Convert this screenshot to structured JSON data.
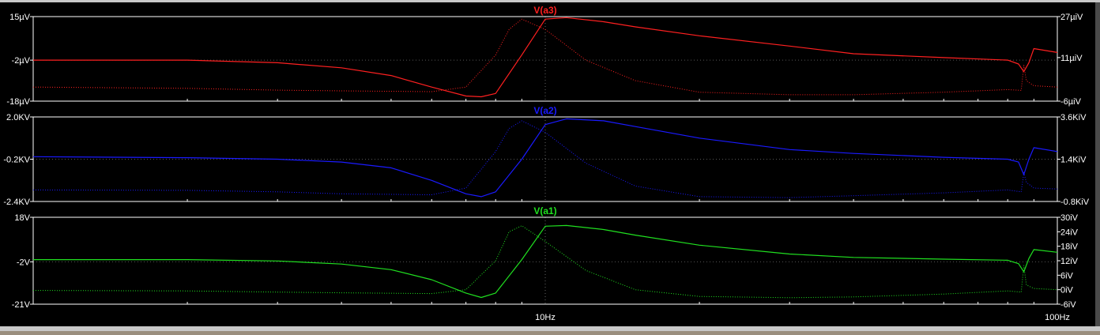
{
  "window": {
    "colors": {
      "background": "#000000",
      "frame": "#ffffff",
      "chrome": "#c8c8c8",
      "bottom_strip": "#9a8e7e"
    }
  },
  "x_axis": {
    "scale": "log",
    "range": [
      1,
      100
    ],
    "tick_labels": [
      {
        "value": 10,
        "label": "10Hz"
      },
      {
        "value": 100,
        "label": "100Hz"
      }
    ],
    "grid": true
  },
  "panes": [
    {
      "title": "V(a3)",
      "color": "#ff2020",
      "left_axis": {
        "range": [
          -18,
          15
        ],
        "ticks": [
          {
            "value": 15,
            "label": "15µV"
          },
          {
            "value": -2,
            "label": "-2µV"
          },
          {
            "value": -18,
            "label": "-18µV"
          }
        ]
      },
      "right_axis": {
        "range": [
          -6,
          27
        ],
        "ticks": [
          {
            "value": 27,
            "label": "27µiV"
          },
          {
            "value": 11,
            "label": "11µiV"
          },
          {
            "value": -6,
            "label": "-6µiV"
          }
        ]
      }
    },
    {
      "title": "V(a2)",
      "color": "#1a1aff",
      "left_axis": {
        "range": [
          -2.4,
          2.0
        ],
        "ticks": [
          {
            "value": 2.0,
            "label": "2.0KV"
          },
          {
            "value": -0.2,
            "label": "-0.2KV"
          },
          {
            "value": -2.4,
            "label": "-2.4KV"
          }
        ]
      },
      "right_axis": {
        "range": [
          -0.8,
          3.6
        ],
        "ticks": [
          {
            "value": 3.6,
            "label": "3.6KiV"
          },
          {
            "value": 1.4,
            "label": "1.4KiV"
          },
          {
            "value": -0.8,
            "label": "-0.8KiV"
          }
        ]
      }
    },
    {
      "title": "V(a1)",
      "color": "#20e020",
      "left_axis": {
        "range": [
          -21,
          18
        ],
        "ticks": [
          {
            "value": 18,
            "label": "18V"
          },
          {
            "value": -2,
            "label": "-2V"
          },
          {
            "value": -21,
            "label": "-21V"
          }
        ]
      },
      "right_axis": {
        "range": [
          -6,
          30
        ],
        "ticks": [
          {
            "value": 30,
            "label": "30iV"
          },
          {
            "value": 24,
            "label": "24iV"
          },
          {
            "value": 18,
            "label": "18iV"
          },
          {
            "value": 12,
            "label": "12iV"
          },
          {
            "value": 6,
            "label": "6iV"
          },
          {
            "value": 0,
            "label": "0iV"
          },
          {
            "value": -6,
            "label": "-6iV"
          }
        ]
      }
    }
  ],
  "chart_data": {
    "type": "line",
    "x_scale": "log",
    "xlim": [
      1,
      100
    ],
    "x_ticks": [
      "10Hz",
      "100Hz"
    ],
    "grid": true,
    "panes": [
      {
        "title": "V(a3)",
        "magnitude": {
          "axis": "left",
          "unit": "µV",
          "ylim": [
            -18,
            15
          ],
          "points": [
            [
              1,
              -2.0
            ],
            [
              2,
              -2.0
            ],
            [
              3,
              -3
            ],
            [
              4,
              -5
            ],
            [
              5,
              -8
            ],
            [
              6,
              -12.5
            ],
            [
              7,
              -16.0
            ],
            [
              7.5,
              -16.3
            ],
            [
              8,
              -15
            ],
            [
              9,
              0
            ],
            [
              10,
              14.0
            ],
            [
              11,
              14.6
            ],
            [
              13,
              13
            ],
            [
              15,
              11
            ],
            [
              20,
              7.5
            ],
            [
              30,
              3.5
            ],
            [
              40,
              0.5
            ],
            [
              60,
              -1.0
            ],
            [
              80,
              -2.0
            ],
            [
              84,
              -3.5
            ],
            [
              86,
              -6.5
            ],
            [
              88,
              -3.0
            ],
            [
              90,
              2.5
            ],
            [
              100,
              1.0
            ]
          ]
        },
        "phase": {
          "axis": "right",
          "unit": "µiV",
          "ylim": [
            -6,
            27
          ],
          "points": [
            [
              1,
              -0.5
            ],
            [
              2,
              -1.0
            ],
            [
              3,
              -1.7
            ],
            [
              4,
              -2.0
            ],
            [
              6,
              -2.3
            ],
            [
              7,
              -0.5
            ],
            [
              8,
              12
            ],
            [
              8.5,
              22
            ],
            [
              9,
              26
            ],
            [
              10,
              22
            ],
            [
              12,
              10
            ],
            [
              15,
              2
            ],
            [
              20,
              -2.5
            ],
            [
              30,
              -3.5
            ],
            [
              40,
              -3.5
            ],
            [
              60,
              -2.5
            ],
            [
              80,
              -1.5
            ],
            [
              85,
              -1.8
            ],
            [
              86,
              8
            ],
            [
              87,
              2
            ],
            [
              90,
              0
            ],
            [
              100,
              -0.5
            ]
          ]
        }
      },
      {
        "title": "V(a2)",
        "magnitude": {
          "axis": "left",
          "unit": "KV",
          "ylim": [
            -2.4,
            2.0
          ],
          "points": [
            [
              1,
              -0.07
            ],
            [
              2,
              -0.12
            ],
            [
              3,
              -0.2
            ],
            [
              4,
              -0.35
            ],
            [
              5,
              -0.65
            ],
            [
              6,
              -1.3
            ],
            [
              7,
              -2.0
            ],
            [
              7.5,
              -2.15
            ],
            [
              8,
              -1.9
            ],
            [
              9,
              -0.2
            ],
            [
              10,
              1.6
            ],
            [
              11,
              1.9
            ],
            [
              13,
              1.8
            ],
            [
              15,
              1.5
            ],
            [
              20,
              0.9
            ],
            [
              30,
              0.3
            ],
            [
              40,
              0.1
            ],
            [
              60,
              -0.1
            ],
            [
              80,
              -0.2
            ],
            [
              84,
              -0.35
            ],
            [
              86,
              -1.0
            ],
            [
              88,
              -0.2
            ],
            [
              90,
              0.4
            ],
            [
              100,
              0.2
            ]
          ]
        },
        "phase": {
          "axis": "right",
          "unit": "KiV",
          "ylim": [
            -0.8,
            3.6
          ],
          "points": [
            [
              1,
              -0.2
            ],
            [
              2,
              -0.22
            ],
            [
              3,
              -0.3
            ],
            [
              4,
              -0.4
            ],
            [
              6,
              -0.45
            ],
            [
              7,
              -0.1
            ],
            [
              8,
              1.8
            ],
            [
              8.5,
              3.0
            ],
            [
              9,
              3.4
            ],
            [
              10,
              2.8
            ],
            [
              12,
              1.2
            ],
            [
              15,
              0.0
            ],
            [
              20,
              -0.55
            ],
            [
              30,
              -0.6
            ],
            [
              40,
              -0.5
            ],
            [
              60,
              -0.35
            ],
            [
              80,
              -0.2
            ],
            [
              85,
              -0.3
            ],
            [
              86,
              0.7
            ],
            [
              87,
              0.2
            ],
            [
              90,
              -0.1
            ],
            [
              100,
              -0.15
            ]
          ]
        }
      },
      {
        "title": "V(a1)",
        "magnitude": {
          "axis": "left",
          "unit": "V",
          "ylim": [
            -21,
            18
          ],
          "points": [
            [
              1,
              -1.0
            ],
            [
              2,
              -1.0
            ],
            [
              3,
              -1.6
            ],
            [
              4,
              -3
            ],
            [
              5,
              -5.5
            ],
            [
              6,
              -10
            ],
            [
              7,
              -16
            ],
            [
              7.5,
              -18.0
            ],
            [
              8,
              -16
            ],
            [
              9,
              -1
            ],
            [
              10,
              14.0
            ],
            [
              11,
              14.3
            ],
            [
              13,
              12.5
            ],
            [
              15,
              10
            ],
            [
              20,
              5.5
            ],
            [
              30,
              1.5
            ],
            [
              40,
              0
            ],
            [
              60,
              -0.8
            ],
            [
              80,
              -1.3
            ],
            [
              84,
              -2.8
            ],
            [
              86,
              -6.5
            ],
            [
              88,
              -0.5
            ],
            [
              90,
              3.5
            ],
            [
              100,
              2.3
            ]
          ]
        },
        "phase": {
          "axis": "right",
          "unit": "iV",
          "ylim": [
            -6,
            30
          ],
          "points": [
            [
              1,
              -0.3
            ],
            [
              2,
              -0.5
            ],
            [
              3,
              -1
            ],
            [
              4,
              -1.3
            ],
            [
              6,
              -1.6
            ],
            [
              7,
              0
            ],
            [
              8,
              12
            ],
            [
              8.5,
              24
            ],
            [
              9,
              26.5
            ],
            [
              10,
              20
            ],
            [
              12,
              8
            ],
            [
              15,
              0
            ],
            [
              20,
              -2.8
            ],
            [
              30,
              -3.3
            ],
            [
              40,
              -3.0
            ],
            [
              60,
              -1.8
            ],
            [
              80,
              -0.5
            ],
            [
              85,
              -1.0
            ],
            [
              86,
              10
            ],
            [
              87,
              2
            ],
            [
              90,
              0.5
            ],
            [
              100,
              0
            ]
          ]
        }
      }
    ]
  }
}
